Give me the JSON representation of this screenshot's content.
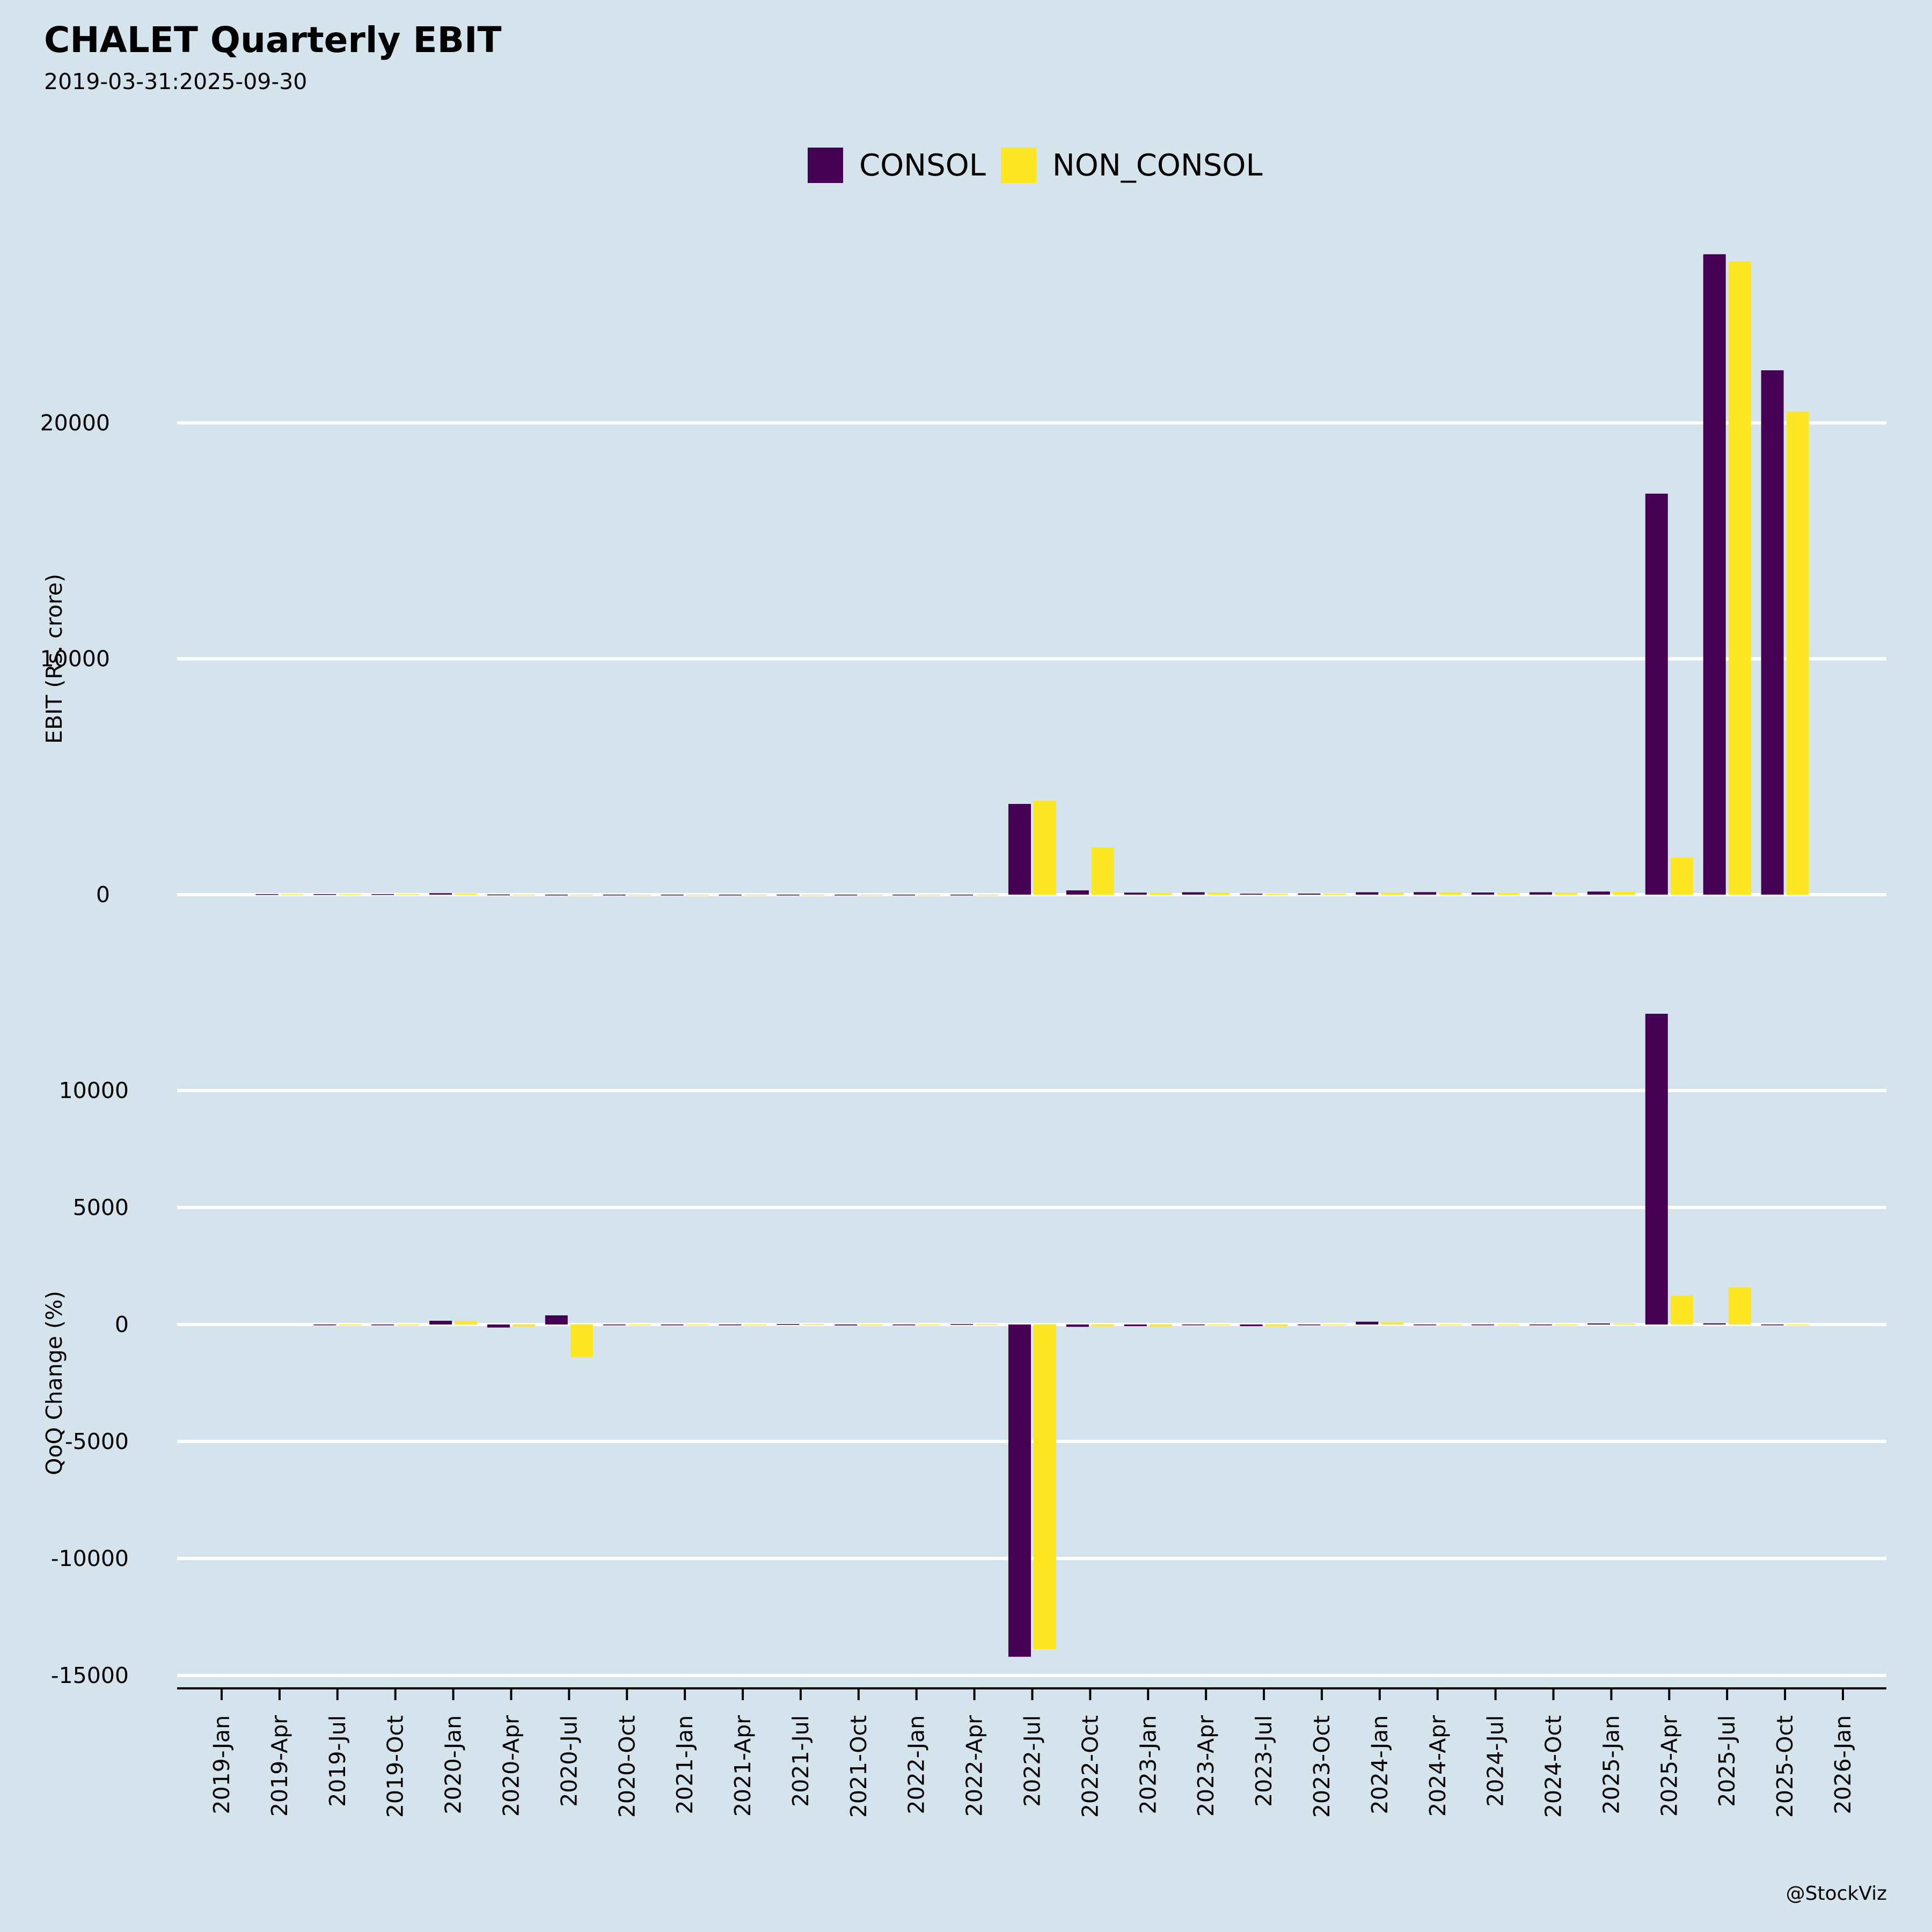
{
  "chart_data": [
    {
      "type": "bar",
      "title": "CHALET Quarterly EBIT",
      "subtitle": "2019-03-31:2025-09-30",
      "ylabel": "EBIT (Rs. crore)",
      "xlabel": "",
      "ylim": [
        -500,
        28500
      ],
      "yticks": [
        0,
        10000,
        20000
      ],
      "grid": true,
      "legend_position": "top-center",
      "categories": [
        "2019-Apr",
        "2019-Jul",
        "2019-Oct",
        "2020-Jan",
        "2020-Apr",
        "2020-Jul",
        "2020-Oct",
        "2021-Jan",
        "2021-Apr",
        "2021-Jul",
        "2021-Oct",
        "2022-Jan",
        "2022-Apr",
        "2022-Jul",
        "2022-Oct",
        "2023-Jan",
        "2023-Apr",
        "2023-Jul",
        "2023-Oct",
        "2024-Jan",
        "2024-Apr",
        "2024-Jul",
        "2024-Oct",
        "2025-Jan",
        "2025-Apr",
        "2025-Jul",
        "2025-Oct"
      ],
      "series": [
        {
          "name": "CONSOL",
          "color": "#440154",
          "values": [
            20,
            20,
            20,
            60,
            5,
            -25,
            -25,
            -20,
            -25,
            -30,
            -10,
            -10,
            -15,
            3845,
            180,
            85,
            100,
            40,
            45,
            100,
            105,
            90,
            100,
            130,
            17000,
            27150,
            22230
          ]
        },
        {
          "name": "NON_CONSOL",
          "color": "#fde725",
          "values": [
            15,
            15,
            15,
            50,
            2,
            -25,
            -25,
            -20,
            -25,
            -30,
            -5,
            -5,
            -10,
            3990,
            2000,
            75,
            90,
            40,
            45,
            85,
            100,
            75,
            85,
            115,
            1580,
            26850,
            20480
          ]
        }
      ]
    },
    {
      "type": "bar",
      "title": "",
      "ylabel": "QoQ Change (%)",
      "xlabel": "",
      "ylim": [
        -15000,
        13500
      ],
      "yticks": [
        -15000,
        -10000,
        -5000,
        0,
        5000,
        10000
      ],
      "grid": true,
      "categories": [
        "2019-Apr",
        "2019-Jul",
        "2019-Oct",
        "2020-Jan",
        "2020-Apr",
        "2020-Jul",
        "2020-Oct",
        "2021-Jan",
        "2021-Apr",
        "2021-Jul",
        "2021-Oct",
        "2022-Jan",
        "2022-Apr",
        "2022-Jul",
        "2022-Oct",
        "2023-Jan",
        "2023-Apr",
        "2023-Jul",
        "2023-Oct",
        "2024-Jan",
        "2024-Apr",
        "2024-Jul",
        "2024-Oct",
        "2025-Jan",
        "2025-Apr",
        "2025-Jul",
        "2025-Oct"
      ],
      "series": [
        {
          "name": "CONSOL",
          "color": "#440154",
          "values": [
            null,
            -20,
            0,
            160,
            -130,
            390,
            -10,
            -20,
            -15,
            20,
            -40,
            -20,
            20,
            -14200,
            -100,
            -70,
            -20,
            -70,
            -20,
            120,
            -15,
            -20,
            -10,
            45,
            13280,
            50,
            -20
          ]
        },
        {
          "name": "NON_CONSOL",
          "color": "#fde725",
          "values": [
            null,
            -20,
            0,
            160,
            -85,
            -1390,
            -10,
            -20,
            -15,
            20,
            -40,
            -20,
            20,
            -13880,
            -70,
            -90,
            -20,
            -70,
            -20,
            100,
            -15,
            -20,
            -10,
            45,
            1230,
            1590,
            -20
          ]
        }
      ]
    }
  ],
  "x_axis": {
    "tick_labels": [
      "2019-Jan",
      "2019-Apr",
      "2019-Jul",
      "2019-Oct",
      "2020-Jan",
      "2020-Apr",
      "2020-Jul",
      "2020-Oct",
      "2021-Jan",
      "2021-Apr",
      "2021-Jul",
      "2021-Oct",
      "2022-Jan",
      "2022-Apr",
      "2022-Jul",
      "2022-Oct",
      "2023-Jan",
      "2023-Apr",
      "2023-Jul",
      "2023-Oct",
      "2024-Jan",
      "2024-Apr",
      "2024-Jul",
      "2024-Oct",
      "2025-Jan",
      "2025-Apr",
      "2025-Jul",
      "2025-Oct",
      "2026-Jan"
    ]
  },
  "header": {
    "title": "CHALET Quarterly EBIT",
    "subtitle": "2019-03-31:2025-09-30"
  },
  "legend": {
    "items": [
      {
        "label": "CONSOL",
        "color": "#440154"
      },
      {
        "label": "NON_CONSOL",
        "color": "#fde725"
      }
    ]
  },
  "watermark": "@StockViz",
  "colors": {
    "background": "#d5e4ec",
    "grid": "#ffffff",
    "axis": "#000000"
  }
}
